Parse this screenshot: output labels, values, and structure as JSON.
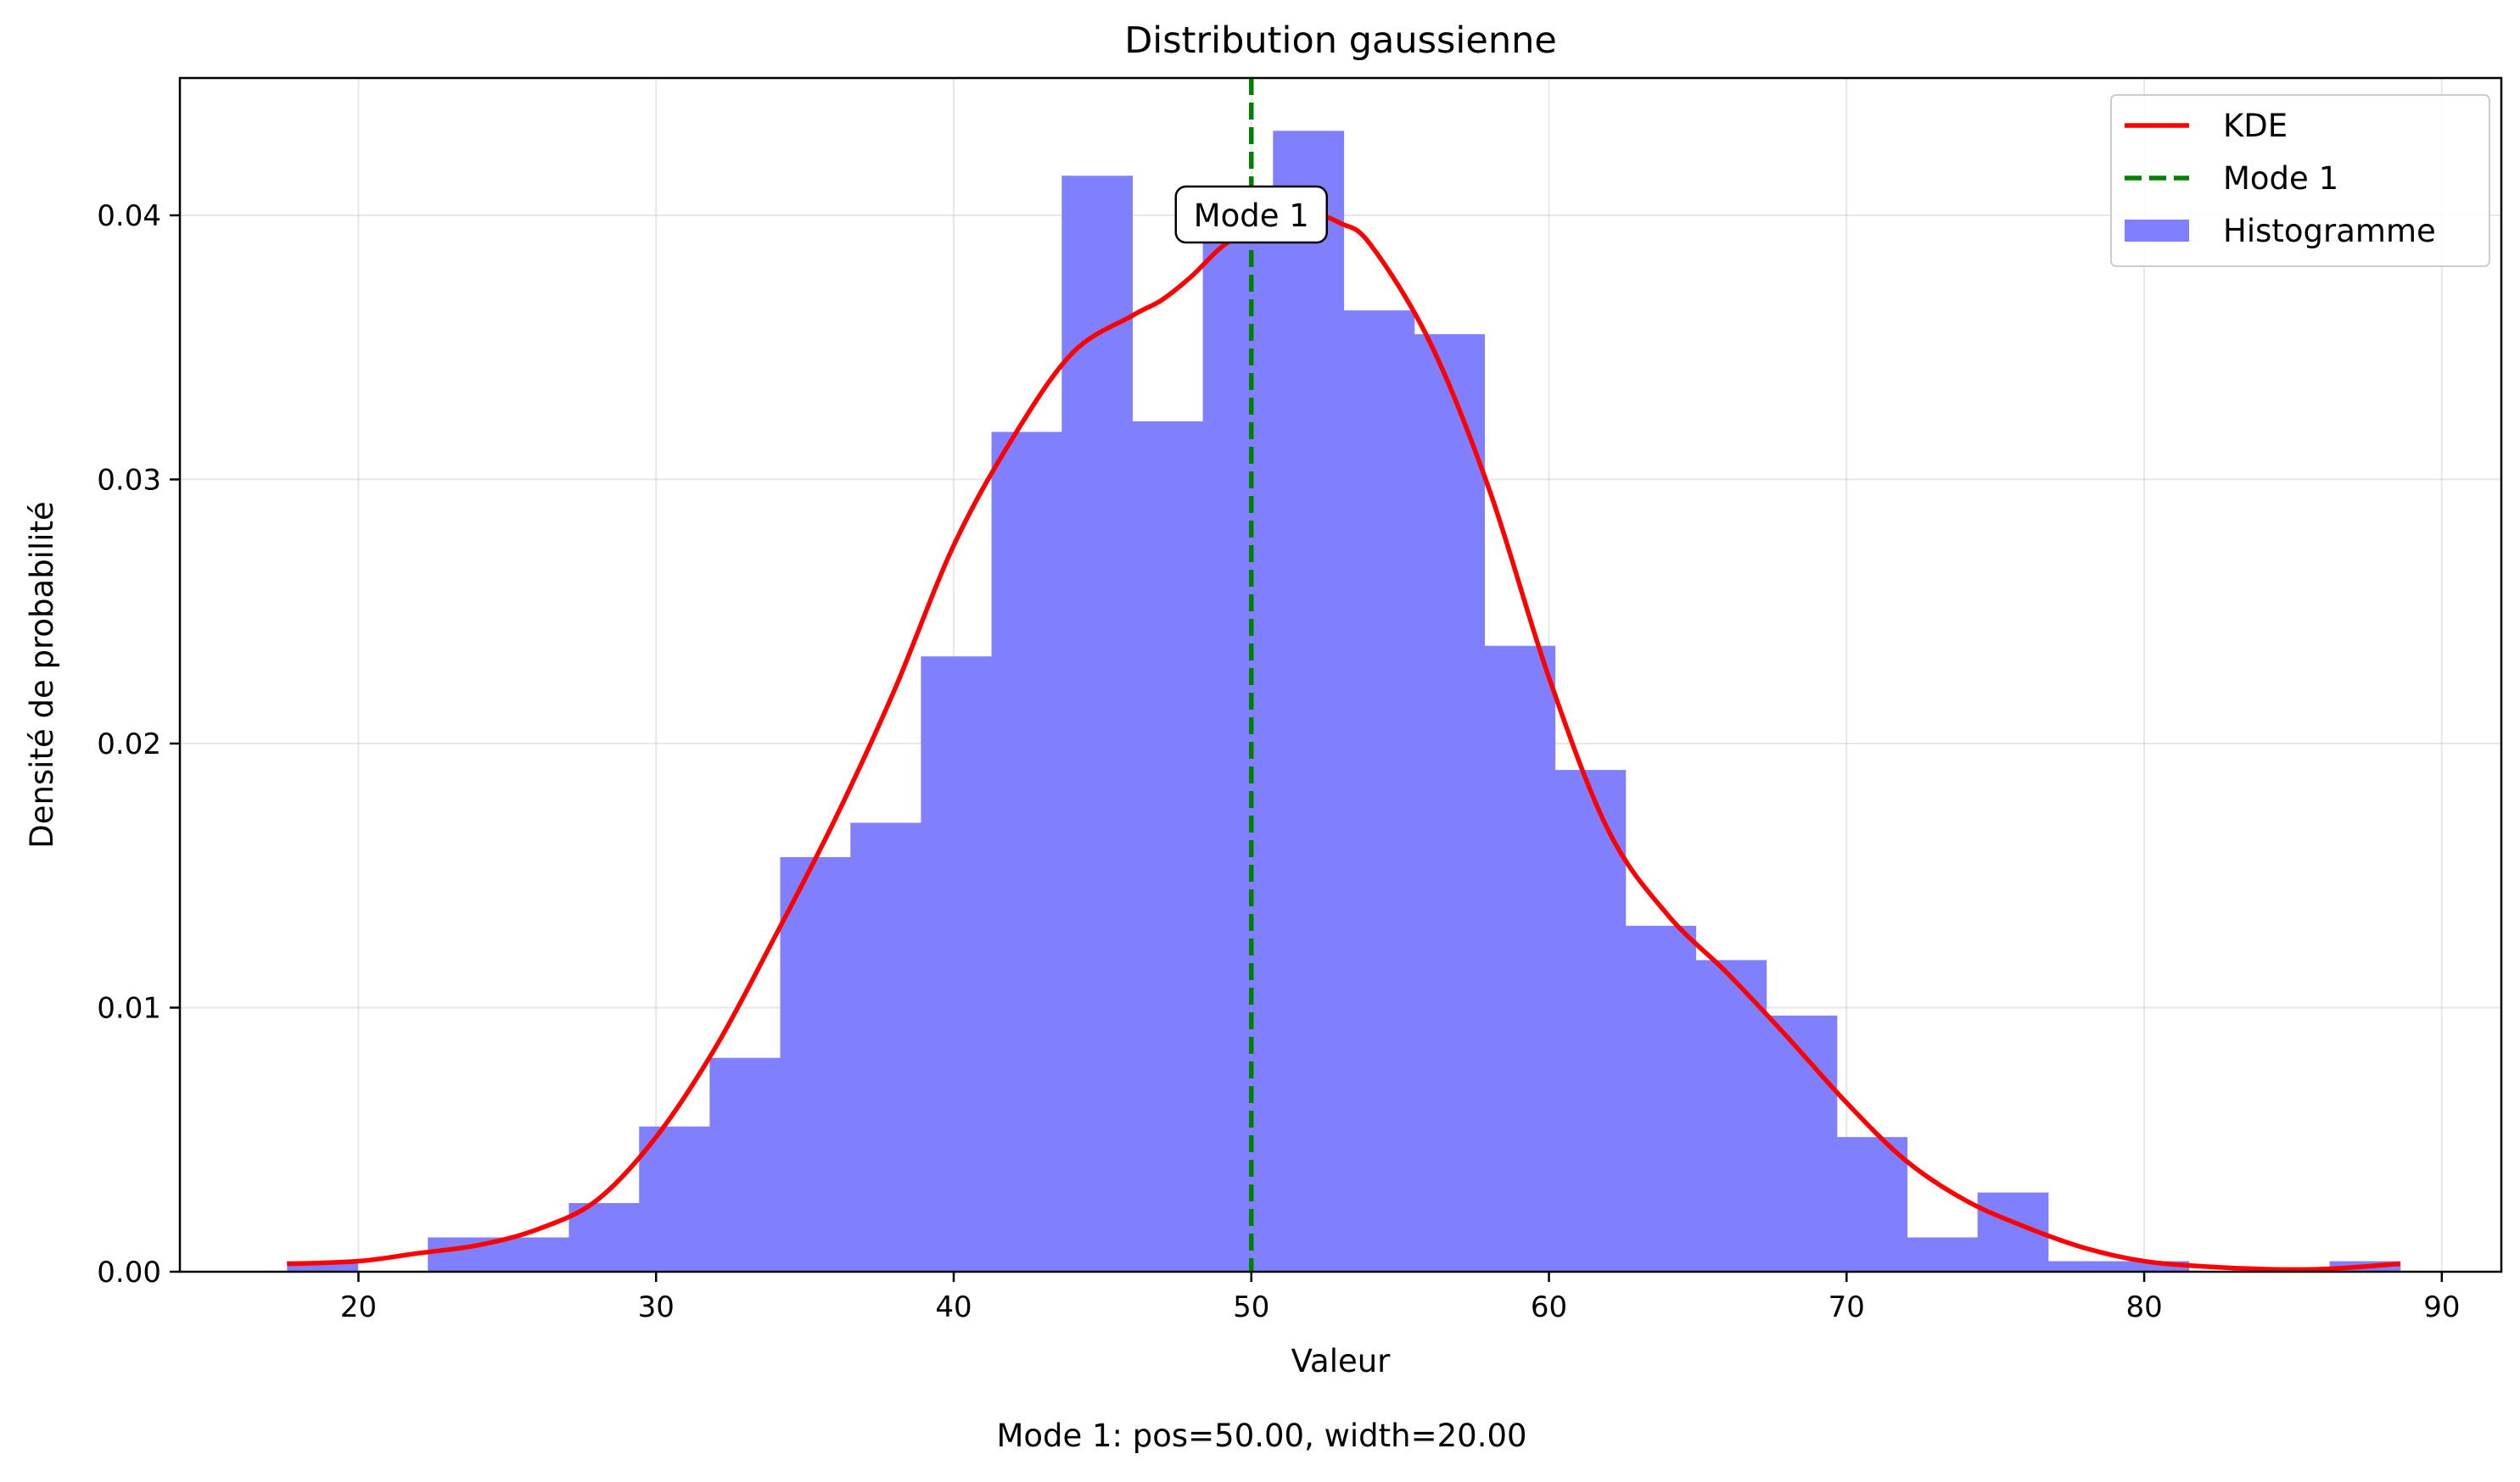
{
  "chart_data": {
    "type": "bar",
    "title": "Distribution gaussienne",
    "xlabel": "Valeur",
    "ylabel": "Densité de probabilité",
    "xlim": [
      14,
      92
    ],
    "ylim": [
      0,
      0.0452
    ],
    "x_ticks": [
      20,
      30,
      40,
      50,
      60,
      70,
      80,
      90
    ],
    "x_tick_labels": [
      "20",
      "30",
      "40",
      "50",
      "60",
      "70",
      "80",
      "90"
    ],
    "y_ticks": [
      0,
      0.01,
      0.02,
      0.03,
      0.04
    ],
    "y_tick_labels": [
      "0.00",
      "0.01",
      "0.02",
      "0.03",
      "0.04"
    ],
    "grid": true,
    "legend_position": "top-right",
    "histogram": {
      "name": "Histogramme",
      "color": "#8080ff",
      "bin_edges": [
        17.6,
        19.97,
        22.33,
        24.7,
        27.07,
        29.43,
        31.8,
        34.17,
        36.53,
        38.9,
        41.27,
        43.63,
        46.0,
        48.37,
        50.73,
        53.1,
        55.47,
        57.83,
        60.2,
        62.57,
        64.93,
        67.3,
        69.67,
        72.03,
        74.4,
        76.77,
        79.13,
        81.5,
        83.87,
        86.23,
        88.6
      ],
      "densities": [
        0.0004,
        0.0,
        0.0013,
        0.0013,
        0.0026,
        0.0055,
        0.0081,
        0.0157,
        0.017,
        0.0233,
        0.0318,
        0.0415,
        0.0322,
        0.0394,
        0.0432,
        0.0364,
        0.0355,
        0.0237,
        0.019,
        0.0131,
        0.0118,
        0.0097,
        0.0051,
        0.0013,
        0.003,
        0.0004,
        0.0004,
        0.0,
        0.0,
        0.0004
      ]
    },
    "kde": {
      "name": "KDE",
      "color": "#ff0000",
      "x": [
        17.6,
        20,
        22,
        24,
        26,
        28,
        30,
        32,
        34,
        36,
        38,
        40,
        42,
        44,
        46,
        47,
        48,
        49,
        50,
        51,
        52,
        53,
        54,
        56,
        58,
        60,
        62,
        64,
        66,
        68,
        70,
        72,
        74,
        76,
        78,
        80,
        82,
        84,
        86,
        88.6
      ],
      "y": [
        0.0003,
        0.0004,
        0.0007,
        0.001,
        0.0016,
        0.0027,
        0.0051,
        0.0085,
        0.0127,
        0.0171,
        0.022,
        0.0275,
        0.0316,
        0.0348,
        0.0362,
        0.0368,
        0.0377,
        0.0388,
        0.0395,
        0.04,
        0.0401,
        0.0397,
        0.0389,
        0.0352,
        0.0296,
        0.0225,
        0.0167,
        0.0135,
        0.0113,
        0.0089,
        0.0064,
        0.0042,
        0.0027,
        0.0017,
        0.0009,
        0.0004,
        0.0002,
        0.0001,
        0.0001,
        0.0003
      ]
    },
    "mode_line": {
      "name": "Mode 1",
      "x": 50,
      "color": "#008000"
    },
    "annotation": {
      "text": "Mode 1",
      "x": 50,
      "y": 0.04
    },
    "legend": [
      {
        "label": "KDE",
        "kind": "line",
        "color": "#ff0000"
      },
      {
        "label": "Mode 1",
        "kind": "dashed",
        "color": "#008000"
      },
      {
        "label": "Histogramme",
        "kind": "patch",
        "color": "#8080ff"
      }
    ],
    "caption": "Mode 1: pos=50.00, width=20.00"
  }
}
